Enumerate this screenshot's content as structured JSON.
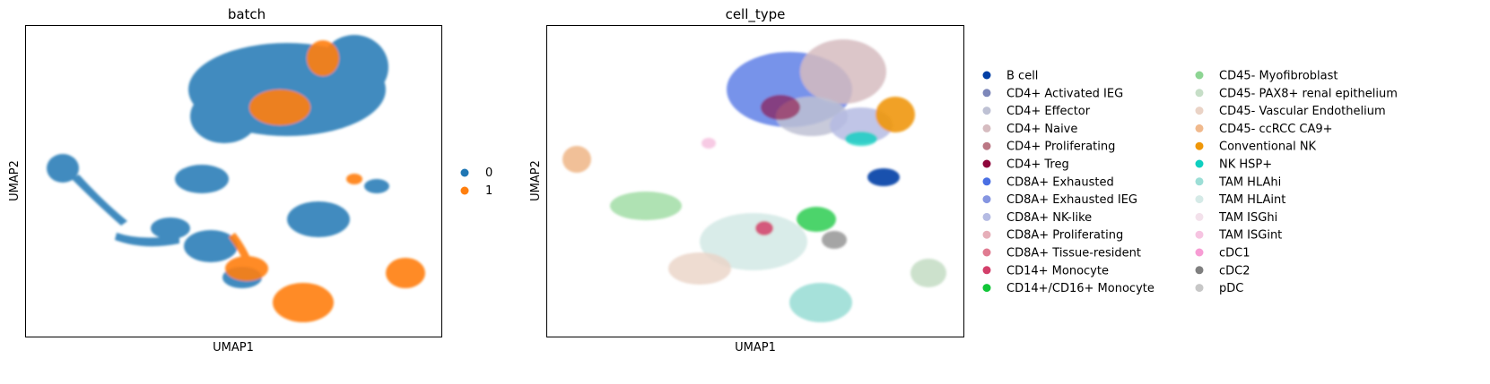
{
  "chart_data": [
    {
      "type": "scatter",
      "title": "batch",
      "xlabel": "UMAP1",
      "ylabel": "UMAP2",
      "legend_placement": "right",
      "grid": false,
      "series": [
        {
          "name": "0",
          "color": "#1f77b4"
        },
        {
          "name": "1",
          "color": "#ff7f0e"
        }
      ]
    },
    {
      "type": "scatter",
      "title": "cell_type",
      "xlabel": "UMAP1",
      "ylabel": "UMAP2",
      "legend_placement": "right",
      "legend_columns": 2,
      "grid": false,
      "series": [
        {
          "name": "B cell",
          "color": "#023fa5"
        },
        {
          "name": "CD4+ Activated IEG",
          "color": "#7d87b9"
        },
        {
          "name": "CD4+ Effector",
          "color": "#bec1d4"
        },
        {
          "name": "CD4+ Naive",
          "color": "#d6bcc0"
        },
        {
          "name": "CD4+ Proliferating",
          "color": "#bb7784"
        },
        {
          "name": "CD4+ Treg",
          "color": "#8e063b"
        },
        {
          "name": "CD8A+ Exhausted",
          "color": "#4a6fe3"
        },
        {
          "name": "CD8A+ Exhausted IEG",
          "color": "#8595e1"
        },
        {
          "name": "CD8A+ NK-like",
          "color": "#b5bbe3"
        },
        {
          "name": "CD8A+ Proliferating",
          "color": "#e6afb9"
        },
        {
          "name": "CD8A+ Tissue-resident",
          "color": "#e07b91"
        },
        {
          "name": "CD14+ Monocyte",
          "color": "#d33f6a"
        },
        {
          "name": "CD14+/CD16+ Monocyte",
          "color": "#11c638"
        },
        {
          "name": "CD45- Myofibroblast",
          "color": "#8dd593"
        },
        {
          "name": "CD45- PAX8+ renal epithelium",
          "color": "#c6dec7"
        },
        {
          "name": "CD45- Vascular Endothelium",
          "color": "#ead3c6"
        },
        {
          "name": "CD45- ccRCC CA9+",
          "color": "#f0b98d"
        },
        {
          "name": "Conventional NK",
          "color": "#ef9708"
        },
        {
          "name": "NK HSP+",
          "color": "#0fcfc0"
        },
        {
          "name": "TAM HLAhi",
          "color": "#9cded6"
        },
        {
          "name": "TAM HLAint",
          "color": "#d5eae7"
        },
        {
          "name": "TAM ISGhi",
          "color": "#f3e1eb"
        },
        {
          "name": "TAM ISGint",
          "color": "#f6c4e1"
        },
        {
          "name": "cDC1",
          "color": "#f79cd4"
        },
        {
          "name": "cDC2",
          "color": "#7f7f7f"
        },
        {
          "name": "pDC",
          "color": "#c7c7c7"
        }
      ]
    }
  ]
}
